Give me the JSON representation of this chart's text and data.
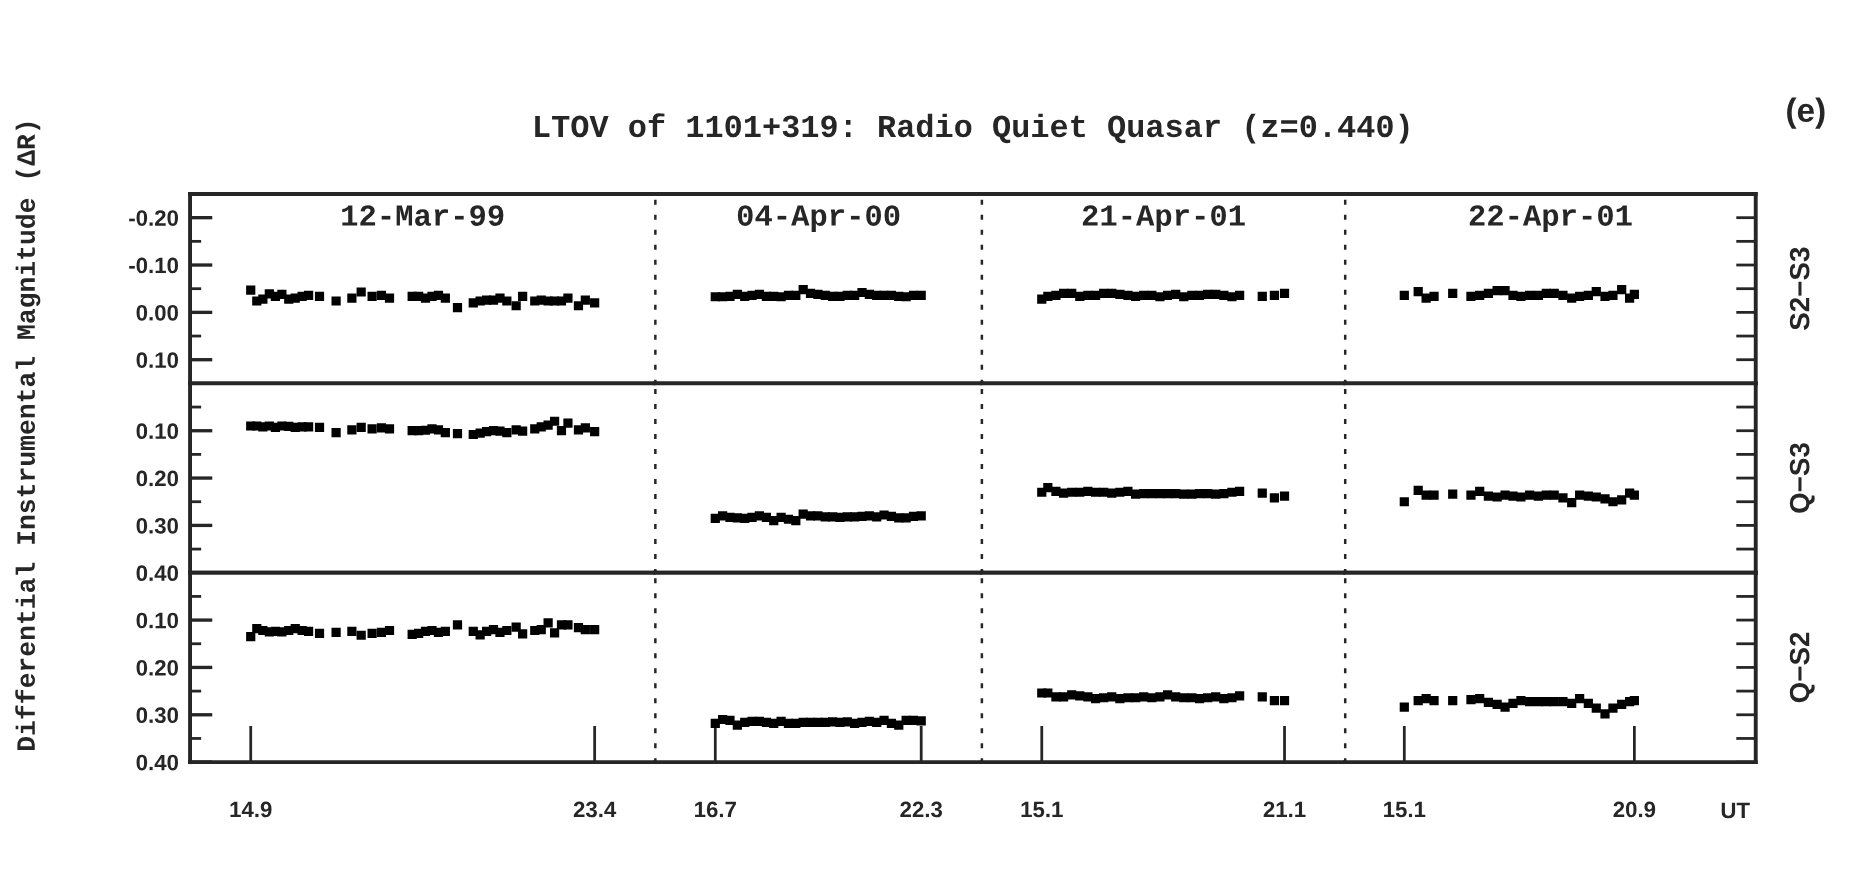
{
  "chart_data": [
    {
      "type": "scatter",
      "title": "LTOV of 1101+319: Radio Quiet Quasar (z=0.440)",
      "subtitle": "12-Mar-99",
      "annotations": [
        "(e)"
      ],
      "marker": "square",
      "color": "#000000",
      "tick_labels": "y",
      "xlim": [
        13.4,
        24.9
      ],
      "ylim": [
        0.15,
        -0.25
      ],
      "yticks": [
        {
          "value": -0.2,
          "label": "-0.20"
        },
        {
          "value": -0.15,
          "label": null
        },
        {
          "value": -0.1,
          "label": "-0.10"
        },
        {
          "value": -0.05,
          "label": null
        },
        {
          "value": 0,
          "label": "0.00"
        },
        {
          "value": 0.05,
          "label": null
        },
        {
          "value": 0.1,
          "label": "0.10"
        }
      ],
      "x": [
        14.9,
        15.05,
        15.2,
        15.36,
        15.51,
        15.67,
        15.84,
        16.0,
        16.17,
        16.33,
        16.6,
        17.01,
        17.4,
        17.63,
        17.9,
        18.13,
        18.33,
        18.89,
        19.05,
        19.22,
        19.38,
        19.54,
        19.71,
        20.01,
        20.4,
        20.57,
        20.73,
        20.9,
        21.06,
        21.23,
        21.46,
        21.62,
        21.92,
        22.08,
        22.25,
        22.41,
        22.58,
        22.74,
        23.0,
        23.17,
        23.4
      ],
      "values": [
        -0.047,
        -0.024,
        -0.028,
        -0.039,
        -0.034,
        -0.038,
        -0.028,
        -0.03,
        -0.034,
        -0.036,
        -0.034,
        -0.024,
        -0.03,
        -0.043,
        -0.034,
        -0.036,
        -0.03,
        -0.034,
        -0.034,
        -0.03,
        -0.034,
        -0.036,
        -0.03,
        -0.01,
        -0.02,
        -0.024,
        -0.026,
        -0.026,
        -0.03,
        -0.024,
        -0.014,
        -0.034,
        -0.024,
        -0.026,
        -0.024,
        -0.024,
        -0.024,
        -0.03,
        -0.014,
        -0.026,
        -0.02
      ]
    },
    {
      "type": "scatter",
      "subtitle": "04-Apr-00",
      "marker": "square",
      "color": "#000000",
      "tick_labels": false,
      "xlim": [
        15.07,
        23.95
      ],
      "ylim": [
        0.15,
        -0.25
      ],
      "x": [
        16.7,
        16.9,
        17.1,
        17.3,
        17.5,
        17.7,
        17.9,
        18.09,
        18.29,
        18.49,
        18.69,
        18.89,
        19.09,
        19.29,
        19.49,
        19.69,
        19.89,
        20.09,
        20.29,
        20.49,
        20.69,
        20.89,
        21.09,
        21.29,
        21.49,
        21.69,
        21.89,
        22.09,
        22.3
      ],
      "values": [
        -0.033,
        -0.033,
        -0.034,
        -0.038,
        -0.034,
        -0.036,
        -0.038,
        -0.034,
        -0.034,
        -0.033,
        -0.036,
        -0.036,
        -0.048,
        -0.04,
        -0.038,
        -0.036,
        -0.034,
        -0.034,
        -0.036,
        -0.036,
        -0.042,
        -0.038,
        -0.036,
        -0.036,
        -0.036,
        -0.034,
        -0.033,
        -0.036,
        -0.036
      ]
    },
    {
      "type": "scatter",
      "subtitle": "21-Apr-01",
      "marker": "square",
      "color": "#000000",
      "tick_labels": false,
      "xlim": [
        13.62,
        22.6
      ],
      "ylim": [
        0.15,
        -0.25
      ],
      "x": [
        15.1,
        15.25,
        15.45,
        15.64,
        15.84,
        16.04,
        16.24,
        16.43,
        16.63,
        16.83,
        17.03,
        17.23,
        17.42,
        17.62,
        17.82,
        18.02,
        18.21,
        18.41,
        18.61,
        18.81,
        19.0,
        19.2,
        19.4,
        19.6,
        19.8,
        19.99,
        20.55,
        20.85,
        21.1
      ],
      "values": [
        -0.028,
        -0.034,
        -0.036,
        -0.04,
        -0.04,
        -0.034,
        -0.036,
        -0.036,
        -0.04,
        -0.04,
        -0.038,
        -0.036,
        -0.034,
        -0.036,
        -0.036,
        -0.033,
        -0.036,
        -0.038,
        -0.033,
        -0.036,
        -0.036,
        -0.038,
        -0.038,
        -0.036,
        -0.033,
        -0.036,
        -0.034,
        -0.036,
        -0.04
      ]
    },
    {
      "type": "scatter",
      "subtitle": "22-Apr-01",
      "y2label": "S2−S3",
      "marker": "square",
      "color": "#000000",
      "tick_labels": false,
      "xlim": [
        13.61,
        23.96
      ],
      "ylim": [
        0.15,
        -0.25
      ],
      "yticks": [
        {
          "value": -0.2,
          "label": null
        },
        {
          "value": -0.15,
          "label": null
        },
        {
          "value": -0.1,
          "label": null
        },
        {
          "value": -0.05,
          "label": null
        },
        {
          "value": 0,
          "label": null
        },
        {
          "value": 0.05,
          "label": null
        },
        {
          "value": 0.1,
          "label": null
        }
      ],
      "x": [
        15.1,
        15.45,
        15.65,
        15.85,
        16.32,
        16.78,
        17.0,
        17.22,
        17.44,
        17.64,
        17.84,
        18.04,
        18.26,
        18.48,
        18.68,
        18.88,
        19.1,
        19.32,
        19.52,
        19.74,
        19.94,
        20.16,
        20.36,
        20.58,
        20.78,
        20.9
      ],
      "values": [
        -0.036,
        -0.044,
        -0.03,
        -0.034,
        -0.04,
        -0.034,
        -0.036,
        -0.04,
        -0.046,
        -0.046,
        -0.036,
        -0.034,
        -0.036,
        -0.036,
        -0.04,
        -0.04,
        -0.036,
        -0.03,
        -0.034,
        -0.036,
        -0.044,
        -0.034,
        -0.036,
        -0.048,
        -0.03,
        -0.038
      ]
    },
    {
      "type": "scatter",
      "ylabel": "Differential Instrumental Magnitude (ΔR)",
      "marker": "square",
      "color": "#000000",
      "tick_labels": "y",
      "xlim": [
        13.4,
        24.9
      ],
      "ylim": [
        0.4,
        0.0
      ],
      "yticks": [
        {
          "value": 0.05,
          "label": null
        },
        {
          "value": 0.1,
          "label": "0.10"
        },
        {
          "value": 0.15,
          "label": null
        },
        {
          "value": 0.2,
          "label": "0.20"
        },
        {
          "value": 0.25,
          "label": null
        },
        {
          "value": 0.3,
          "label": "0.30"
        },
        {
          "value": 0.35,
          "label": null
        },
        {
          "value": 0.4,
          "label": "0.40"
        }
      ],
      "x": [
        14.9,
        15.05,
        15.2,
        15.36,
        15.51,
        15.67,
        15.84,
        16.0,
        16.17,
        16.33,
        16.6,
        17.01,
        17.4,
        17.63,
        17.9,
        18.13,
        18.33,
        18.89,
        19.05,
        19.22,
        19.38,
        19.54,
        19.71,
        20.01,
        20.4,
        20.57,
        20.73,
        20.9,
        21.06,
        21.23,
        21.46,
        21.62,
        21.92,
        22.08,
        22.25,
        22.41,
        22.58,
        22.74,
        23.0,
        23.17,
        23.4
      ],
      "values": [
        0.09,
        0.09,
        0.092,
        0.09,
        0.093,
        0.09,
        0.091,
        0.093,
        0.092,
        0.092,
        0.093,
        0.104,
        0.098,
        0.093,
        0.096,
        0.094,
        0.096,
        0.1,
        0.1,
        0.099,
        0.096,
        0.098,
        0.104,
        0.106,
        0.108,
        0.105,
        0.102,
        0.1,
        0.101,
        0.104,
        0.098,
        0.101,
        0.096,
        0.092,
        0.088,
        0.08,
        0.1,
        0.084,
        0.098,
        0.094,
        0.102
      ]
    },
    {
      "type": "scatter",
      "marker": "square",
      "color": "#000000",
      "tick_labels": false,
      "xlim": [
        15.07,
        23.95
      ],
      "ylim": [
        0.4,
        0.0
      ],
      "x": [
        16.7,
        16.9,
        17.1,
        17.3,
        17.5,
        17.7,
        17.9,
        18.09,
        18.29,
        18.49,
        18.69,
        18.89,
        19.09,
        19.29,
        19.49,
        19.69,
        19.89,
        20.09,
        20.29,
        20.49,
        20.69,
        20.89,
        21.09,
        21.29,
        21.49,
        21.69,
        21.89,
        22.09,
        22.3
      ],
      "values": [
        0.285,
        0.28,
        0.283,
        0.284,
        0.285,
        0.283,
        0.28,
        0.283,
        0.29,
        0.283,
        0.287,
        0.29,
        0.276,
        0.28,
        0.28,
        0.282,
        0.282,
        0.283,
        0.282,
        0.282,
        0.281,
        0.28,
        0.282,
        0.278,
        0.281,
        0.284,
        0.284,
        0.281,
        0.28
      ]
    },
    {
      "type": "scatter",
      "marker": "square",
      "color": "#000000",
      "tick_labels": false,
      "xlim": [
        13.62,
        22.6
      ],
      "ylim": [
        0.4,
        0.0
      ],
      "x": [
        15.1,
        15.25,
        15.45,
        15.64,
        15.84,
        16.04,
        16.24,
        16.43,
        16.63,
        16.83,
        17.03,
        17.23,
        17.42,
        17.62,
        17.82,
        18.02,
        18.21,
        18.41,
        18.61,
        18.81,
        19.0,
        19.2,
        19.4,
        19.6,
        19.8,
        19.99,
        20.55,
        20.85,
        21.1
      ],
      "values": [
        0.23,
        0.22,
        0.228,
        0.232,
        0.23,
        0.23,
        0.228,
        0.23,
        0.23,
        0.232,
        0.23,
        0.228,
        0.234,
        0.233,
        0.233,
        0.233,
        0.233,
        0.233,
        0.234,
        0.234,
        0.233,
        0.233,
        0.234,
        0.233,
        0.23,
        0.228,
        0.232,
        0.242,
        0.238
      ]
    },
    {
      "type": "scatter",
      "y2label": "Q−S3",
      "marker": "square",
      "color": "#000000",
      "tick_labels": false,
      "xlim": [
        13.61,
        23.96
      ],
      "ylim": [
        0.4,
        0.0
      ],
      "yticks": [
        {
          "value": 0.05,
          "label": null
        },
        {
          "value": 0.1,
          "label": null
        },
        {
          "value": 0.15,
          "label": null
        },
        {
          "value": 0.2,
          "label": null
        },
        {
          "value": 0.25,
          "label": null
        },
        {
          "value": 0.3,
          "label": null
        },
        {
          "value": 0.35,
          "label": null
        },
        {
          "value": 0.4,
          "label": null
        }
      ],
      "x": [
        15.1,
        15.45,
        15.65,
        15.85,
        16.32,
        16.78,
        17.0,
        17.22,
        17.44,
        17.64,
        17.84,
        18.04,
        18.26,
        18.48,
        18.68,
        18.88,
        19.1,
        19.32,
        19.52,
        19.74,
        19.94,
        20.16,
        20.36,
        20.58,
        20.78,
        20.9
      ],
      "values": [
        0.25,
        0.226,
        0.236,
        0.236,
        0.234,
        0.236,
        0.228,
        0.238,
        0.24,
        0.236,
        0.238,
        0.24,
        0.236,
        0.238,
        0.236,
        0.236,
        0.242,
        0.252,
        0.236,
        0.238,
        0.24,
        0.244,
        0.25,
        0.246,
        0.232,
        0.236
      ]
    },
    {
      "type": "scatter",
      "marker": "square",
      "color": "#000000",
      "xlim": [
        13.4,
        24.9
      ],
      "xticks": [
        14.9,
        23.4
      ],
      "ylim": [
        0.4,
        0.0
      ],
      "yticks": [
        {
          "value": 0.05,
          "label": null
        },
        {
          "value": 0.1,
          "label": "0.10"
        },
        {
          "value": 0.15,
          "label": null
        },
        {
          "value": 0.2,
          "label": "0.20"
        },
        {
          "value": 0.25,
          "label": null
        },
        {
          "value": 0.3,
          "label": "0.30"
        },
        {
          "value": 0.35,
          "label": null
        },
        {
          "value": 0.4,
          "label": "0.40"
        }
      ],
      "x": [
        14.9,
        15.05,
        15.2,
        15.36,
        15.51,
        15.67,
        15.84,
        16.0,
        16.17,
        16.33,
        16.6,
        17.01,
        17.4,
        17.63,
        17.9,
        18.13,
        18.33,
        18.89,
        19.05,
        19.22,
        19.38,
        19.54,
        19.71,
        20.01,
        20.4,
        20.57,
        20.73,
        20.9,
        21.06,
        21.23,
        21.46,
        21.62,
        21.92,
        22.08,
        22.25,
        22.41,
        22.58,
        22.74,
        23.0,
        23.17,
        23.4
      ],
      "values": [
        0.135,
        0.118,
        0.122,
        0.125,
        0.124,
        0.125,
        0.122,
        0.118,
        0.122,
        0.124,
        0.128,
        0.126,
        0.124,
        0.132,
        0.128,
        0.126,
        0.122,
        0.13,
        0.128,
        0.124,
        0.122,
        0.126,
        0.124,
        0.11,
        0.124,
        0.131,
        0.124,
        0.12,
        0.126,
        0.122,
        0.115,
        0.129,
        0.122,
        0.12,
        0.106,
        0.127,
        0.11,
        0.11,
        0.116,
        0.12,
        0.12
      ]
    },
    {
      "type": "scatter",
      "marker": "square",
      "color": "#000000",
      "tick_labels": "x",
      "xlim": [
        15.07,
        23.95
      ],
      "xticks": [
        16.7,
        22.3
      ],
      "ylim": [
        0.4,
        0.0
      ],
      "x": [
        16.7,
        16.9,
        17.1,
        17.3,
        17.5,
        17.7,
        17.9,
        18.09,
        18.29,
        18.49,
        18.69,
        18.89,
        19.09,
        19.29,
        19.49,
        19.69,
        19.89,
        20.09,
        20.29,
        20.49,
        20.69,
        20.89,
        21.09,
        21.29,
        21.49,
        21.69,
        21.89,
        22.09,
        22.3
      ],
      "values": [
        0.318,
        0.31,
        0.312,
        0.322,
        0.316,
        0.314,
        0.314,
        0.316,
        0.318,
        0.314,
        0.318,
        0.318,
        0.316,
        0.316,
        0.316,
        0.316,
        0.315,
        0.316,
        0.315,
        0.318,
        0.316,
        0.314,
        0.316,
        0.312,
        0.318,
        0.322,
        0.312,
        0.312,
        0.313
      ]
    },
    {
      "type": "scatter",
      "marker": "square",
      "color": "#000000",
      "tick_labels": "x",
      "xlim": [
        13.62,
        22.6
      ],
      "xticks": [
        15.1,
        21.1
      ],
      "ylim": [
        0.4,
        0.0
      ],
      "x": [
        15.1,
        15.25,
        15.45,
        15.64,
        15.84,
        16.04,
        16.24,
        16.43,
        16.63,
        16.83,
        17.03,
        17.23,
        17.42,
        17.62,
        17.82,
        18.02,
        18.21,
        18.41,
        18.61,
        18.81,
        19.0,
        19.2,
        19.4,
        19.6,
        19.8,
        19.99,
        20.55,
        20.85,
        21.1
      ],
      "values": [
        0.254,
        0.254,
        0.262,
        0.262,
        0.258,
        0.26,
        0.262,
        0.266,
        0.264,
        0.262,
        0.266,
        0.264,
        0.264,
        0.262,
        0.264,
        0.262,
        0.258,
        0.262,
        0.264,
        0.264,
        0.266,
        0.264,
        0.262,
        0.266,
        0.264,
        0.26,
        0.262,
        0.27,
        0.27
      ]
    },
    {
      "type": "scatter",
      "xlabel": "UT",
      "y2label": "Q−S2",
      "marker": "square",
      "color": "#000000",
      "tick_labels": "x",
      "xlim": [
        13.61,
        23.96
      ],
      "xticks": [
        15.1,
        20.9
      ],
      "ylim": [
        0.4,
        0.0
      ],
      "yticks": [
        {
          "value": 0.05,
          "label": null
        },
        {
          "value": 0.1,
          "label": null
        },
        {
          "value": 0.15,
          "label": null
        },
        {
          "value": 0.2,
          "label": null
        },
        {
          "value": 0.25,
          "label": null
        },
        {
          "value": 0.3,
          "label": null
        },
        {
          "value": 0.35,
          "label": null
        },
        {
          "value": 0.4,
          "label": null
        }
      ],
      "x": [
        15.1,
        15.45,
        15.65,
        15.85,
        16.32,
        16.78,
        17.0,
        17.22,
        17.44,
        17.64,
        17.84,
        18.04,
        18.26,
        18.48,
        18.68,
        18.88,
        19.1,
        19.32,
        19.52,
        19.74,
        19.94,
        20.16,
        20.36,
        20.58,
        20.78,
        20.9
      ],
      "values": [
        0.284,
        0.27,
        0.266,
        0.27,
        0.27,
        0.268,
        0.266,
        0.274,
        0.278,
        0.284,
        0.276,
        0.27,
        0.272,
        0.272,
        0.272,
        0.272,
        0.272,
        0.276,
        0.266,
        0.276,
        0.286,
        0.298,
        0.286,
        0.278,
        0.272,
        0.27
      ]
    }
  ]
}
